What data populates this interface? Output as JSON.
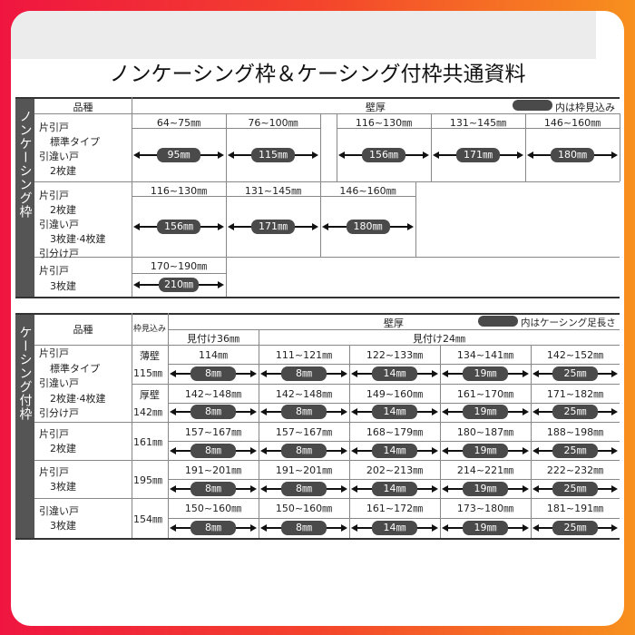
{
  "title": "ノンケーシング枠＆ケーシング付枠共通資料",
  "colors": {
    "frame_left": "#ef1540",
    "frame_right": "#f7901e",
    "pill": "#4a4a4a",
    "side_label_bg": "#555555"
  },
  "non_casing": {
    "side_label": "ノンケーシング枠",
    "hinshu_header": "品種",
    "wall_header": "壁厚",
    "legend": "内は枠見込み",
    "groups": [
      {
        "labels": [
          "片引戸",
          "標準タイプ",
          "引違い戸",
          "2枚建"
        ],
        "cells": [
          {
            "range": "64~75㎜",
            "value": "95㎜"
          },
          {
            "range": "76~100㎜",
            "value": "115㎜"
          },
          {
            "range": "116~130㎜",
            "value": "156㎜"
          },
          {
            "range": "131~145㎜",
            "value": "171㎜"
          },
          {
            "range": "146~160㎜",
            "value": "180㎜"
          }
        ]
      },
      {
        "labels": [
          "片引戸",
          "2枚建",
          "引違い戸",
          "3枚建·4枚建",
          "引分け戸"
        ],
        "cells": [
          {
            "range": "116~130㎜",
            "value": "156㎜"
          },
          {
            "range": "131~145㎜",
            "value": "171㎜"
          },
          {
            "range": "146~160㎜",
            "value": "180㎜"
          }
        ]
      },
      {
        "labels": [
          "片引戸",
          "3枚建"
        ],
        "cells": [
          {
            "range": "170~190㎜",
            "value": "210㎜"
          }
        ]
      }
    ]
  },
  "casing": {
    "side_label": "ケーシング付枠",
    "hinshu_header": "品種",
    "waku_header": "枠見込み",
    "wall_header": "壁厚",
    "legend": "内はケーシング足長さ",
    "mitsuke36": "見付け36㎜",
    "mitsuke24": "見付け24㎜",
    "casing_lengths": [
      "8㎜",
      "8㎜",
      "14㎜",
      "19㎜",
      "25㎜"
    ],
    "groups": [
      {
        "labels": [
          "片引戸",
          "標準タイプ",
          "引違い戸",
          "2枚建·4枚建",
          "引分け戸"
        ],
        "subrows": [
          {
            "wall": "薄壁",
            "depth": "115㎜",
            "ranges": [
              "114㎜",
              "111~121㎜",
              "122~133㎜",
              "134~141㎜",
              "142~152㎜"
            ]
          },
          {
            "wall": "厚壁",
            "depth": "142㎜",
            "ranges": [
              "142~148㎜",
              "142~148㎜",
              "149~160㎜",
              "161~170㎜",
              "171~182㎜"
            ]
          }
        ]
      },
      {
        "labels": [
          "片引戸",
          "2枚建"
        ],
        "subrows": [
          {
            "depth": "161㎜",
            "ranges": [
              "157~167㎜",
              "157~167㎜",
              "168~179㎜",
              "180~187㎜",
              "188~198㎜"
            ]
          }
        ]
      },
      {
        "labels": [
          "片引戸",
          "3枚建"
        ],
        "subrows": [
          {
            "depth": "195㎜",
            "ranges": [
              "191~201㎜",
              "191~201㎜",
              "202~213㎜",
              "214~221㎜",
              "222~232㎜"
            ]
          }
        ]
      },
      {
        "labels": [
          "引違い戸",
          "3枚建"
        ],
        "subrows": [
          {
            "depth": "154㎜",
            "ranges": [
              "150~160㎜",
              "150~160㎜",
              "161~172㎜",
              "173~180㎜",
              "181~191㎜"
            ]
          }
        ]
      }
    ]
  }
}
